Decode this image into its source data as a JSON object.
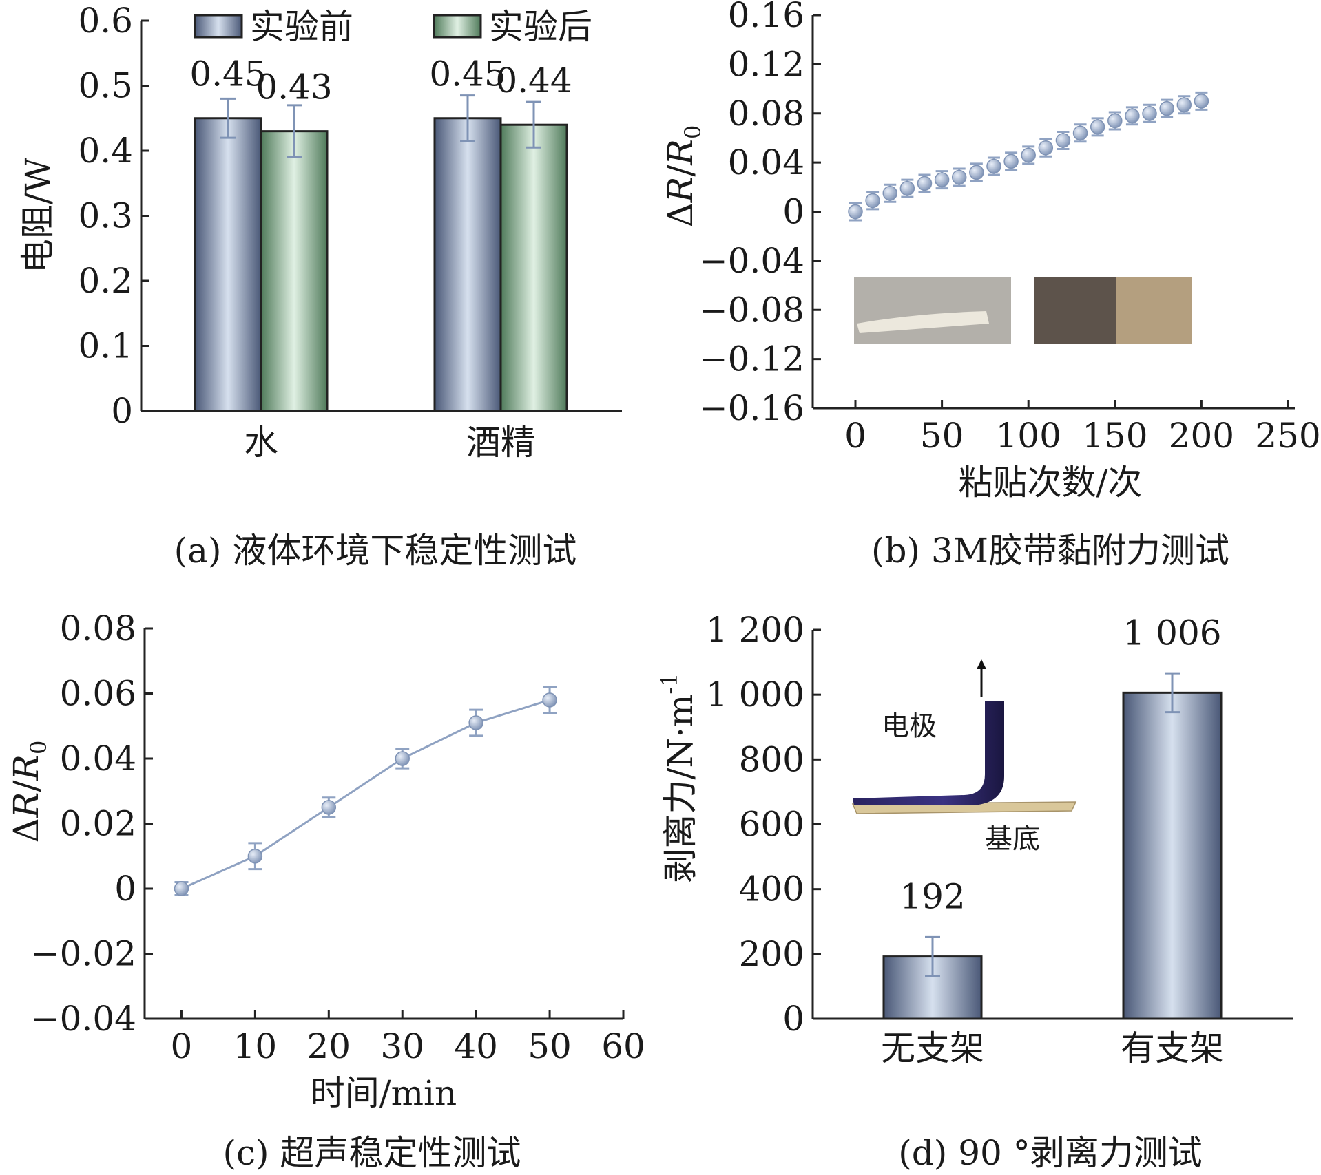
{
  "chart_data": [
    {
      "id": "a",
      "type": "bar",
      "caption": "(a) 液体环境下稳定性测试",
      "ylabel": "电阻/W",
      "ylim": [
        0,
        0.6
      ],
      "yticks": [
        "0",
        "0.1",
        "0.2",
        "0.3",
        "0.4",
        "0.5",
        "0.6"
      ],
      "categories": [
        "水",
        "酒精"
      ],
      "legend_position": "top",
      "series": [
        {
          "name": "实验前",
          "values": [
            0.45,
            0.45
          ],
          "errors": [
            0.03,
            0.035
          ],
          "labels": [
            "0.45",
            "0.45"
          ],
          "color": "#8f9fbd"
        },
        {
          "name": "实验后",
          "values": [
            0.43,
            0.44
          ],
          "errors": [
            0.04,
            0.035
          ],
          "labels": [
            "0.43",
            "0.44"
          ],
          "color": "#a3c8ac"
        }
      ]
    },
    {
      "id": "b",
      "type": "scatter",
      "caption": "(b) 3M胶带黏附力测试",
      "xlabel": "粘贴次数/次",
      "ylabel_main": "ΔR/R",
      "ylabel_sub": "0",
      "xlim": [
        0,
        250
      ],
      "ylim": [
        -0.16,
        0.16
      ],
      "xticks": [
        "0",
        "50",
        "100",
        "150",
        "200",
        "250"
      ],
      "yticks": [
        "-0.16",
        "-0.12",
        "-0.08",
        "-0.04",
        "0",
        "0.04",
        "0.08",
        "0.12",
        "0.16"
      ],
      "x": [
        0,
        10,
        20,
        30,
        40,
        50,
        60,
        70,
        80,
        90,
        100,
        110,
        120,
        130,
        140,
        150,
        160,
        170,
        180,
        190,
        200
      ],
      "y": [
        0.0,
        0.009,
        0.015,
        0.019,
        0.023,
        0.026,
        0.028,
        0.032,
        0.037,
        0.041,
        0.046,
        0.052,
        0.058,
        0.064,
        0.069,
        0.074,
        0.078,
        0.08,
        0.084,
        0.087,
        0.09
      ],
      "errors": [
        0.007,
        0.007,
        0.007,
        0.007,
        0.007,
        0.007,
        0.007,
        0.007,
        0.007,
        0.007,
        0.007,
        0.007,
        0.007,
        0.007,
        0.007,
        0.007,
        0.007,
        0.007,
        0.007,
        0.007,
        0.007
      ],
      "color": "#8fa2c2",
      "grid": false
    },
    {
      "id": "c",
      "type": "line",
      "caption": "(c) 超声稳定性测试",
      "xlabel": "时间/min",
      "ylabel_main": "ΔR/R",
      "ylabel_sub": "0",
      "xlim": [
        -5,
        60
      ],
      "ylim": [
        -0.04,
        0.08
      ],
      "xticks": [
        "0",
        "10",
        "20",
        "30",
        "40",
        "50",
        "60"
      ],
      "yticks": [
        "-0.04",
        "-0.02",
        "0",
        "0.02",
        "0.04",
        "0.06",
        "0.08"
      ],
      "x": [
        0,
        10,
        20,
        30,
        40,
        50
      ],
      "y": [
        0.0,
        0.01,
        0.025,
        0.04,
        0.051,
        0.058
      ],
      "errors": [
        0.002,
        0.004,
        0.003,
        0.003,
        0.004,
        0.004
      ],
      "color": "#8fa2c2",
      "grid": false
    },
    {
      "id": "d",
      "type": "bar",
      "caption": "(d) 90 °剥离力测试",
      "ylabel": "剥离力/N·m",
      "ylabel_sup": "-1",
      "ylim": [
        0,
        1200
      ],
      "yticks": [
        "0",
        "200",
        "400",
        "600",
        "800",
        "1 000",
        "1 200"
      ],
      "categories": [
        "无支架",
        "有支架"
      ],
      "values": [
        192,
        1006
      ],
      "errors": [
        60,
        60
      ],
      "labels": [
        "192",
        "1 006"
      ],
      "color": "#8f9fbd",
      "inset_labels": {
        "electrode": "电极",
        "substrate": "基底"
      }
    }
  ]
}
